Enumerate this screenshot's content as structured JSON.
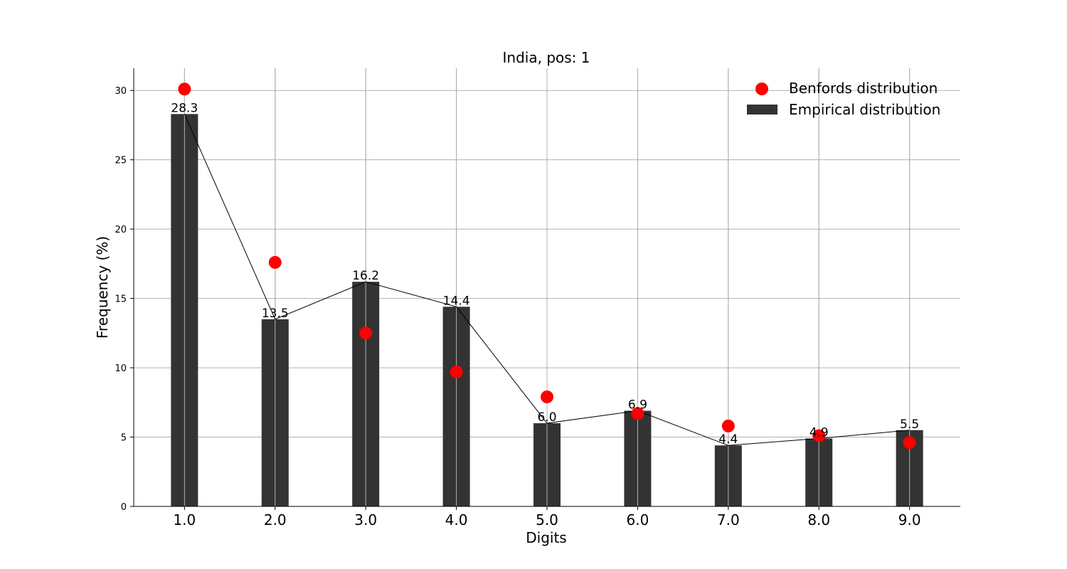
{
  "chart_data": {
    "type": "bar",
    "title": "India, pos: 1",
    "xlabel": "Digits",
    "ylabel": "Frequency (%)",
    "x": [
      1.0,
      2.0,
      3.0,
      4.0,
      5.0,
      6.0,
      7.0,
      8.0,
      9.0
    ],
    "x_tick_labels": [
      "1.0",
      "2.0",
      "3.0",
      "4.0",
      "5.0",
      "6.0",
      "7.0",
      "8.0",
      "9.0"
    ],
    "y_ticks": [
      0,
      5,
      10,
      15,
      20,
      25,
      30
    ],
    "ylim": [
      0,
      31.6
    ],
    "xlim": [
      0.44,
      9.56
    ],
    "grid": true,
    "legend_placement": "top-right",
    "series": [
      {
        "name": "Empirical distribution",
        "kind": "bar+line",
        "color": "#333333",
        "values": [
          28.3,
          13.5,
          16.2,
          14.4,
          6.0,
          6.9,
          4.4,
          4.9,
          5.5
        ],
        "data_labels": [
          "28.3",
          "13.5",
          "16.2",
          "14.4",
          "6.0",
          "6.9",
          "4.4",
          "4.9",
          "5.5"
        ]
      },
      {
        "name": "Benfords distribution",
        "kind": "scatter",
        "color": "#ff0000",
        "values": [
          30.1,
          17.6,
          12.5,
          9.7,
          7.9,
          6.7,
          5.8,
          5.1,
          4.6
        ]
      }
    ]
  }
}
